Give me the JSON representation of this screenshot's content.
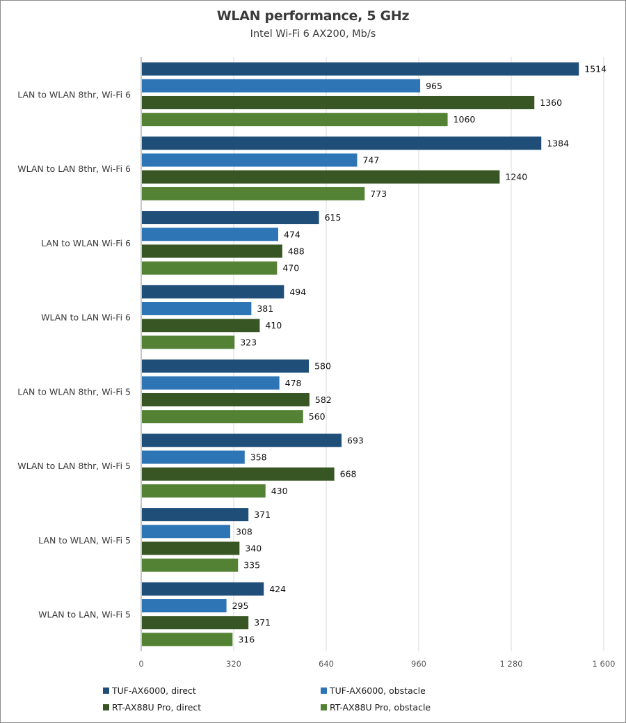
{
  "title": "WLAN performance, 5 GHz",
  "subtitle": "Intel Wi-Fi 6 AX200, Mb/s",
  "chart_data": {
    "type": "bar",
    "orientation": "horizontal",
    "title": "WLAN performance, 5 GHz",
    "subtitle": "Intel Wi-Fi 6 AX200, Mb/s",
    "xlabel": "",
    "ylabel": "",
    "xlim": [
      0,
      1600
    ],
    "x_ticks": [
      0,
      320,
      640,
      960,
      1280,
      1600
    ],
    "x_tick_labels": [
      "0",
      "320",
      "640",
      "960",
      "1 280",
      "1 600"
    ],
    "grid": true,
    "legend_position": "bottom",
    "categories": [
      "LAN to WLAN 8thr, Wi-Fi 6",
      "WLAN to LAN 8thr, Wi-Fi 6",
      "LAN to WLAN Wi-Fi 6",
      "WLAN to LAN Wi-Fi 6",
      "LAN to WLAN 8thr, Wi-Fi 5",
      "WLAN to LAN 8thr, Wi-Fi 5",
      "LAN to WLAN, Wi-Fi 5",
      "WLAN to LAN, Wi-Fi 5"
    ],
    "series": [
      {
        "name": "TUF-AX6000, direct",
        "color": "#1f4e79",
        "values": [
          1514,
          1384,
          615,
          494,
          580,
          693,
          371,
          424
        ]
      },
      {
        "name": "TUF-AX6000, obstacle",
        "color": "#2e75b6",
        "values": [
          965,
          747,
          474,
          381,
          478,
          358,
          308,
          295
        ]
      },
      {
        "name": "RT-AX88U Pro, direct",
        "color": "#375623",
        "values": [
          1360,
          1240,
          488,
          410,
          582,
          668,
          340,
          371
        ]
      },
      {
        "name": "RT-AX88U Pro, obstacle",
        "color": "#548235",
        "values": [
          1060,
          773,
          470,
          323,
          560,
          430,
          335,
          316
        ]
      }
    ]
  }
}
